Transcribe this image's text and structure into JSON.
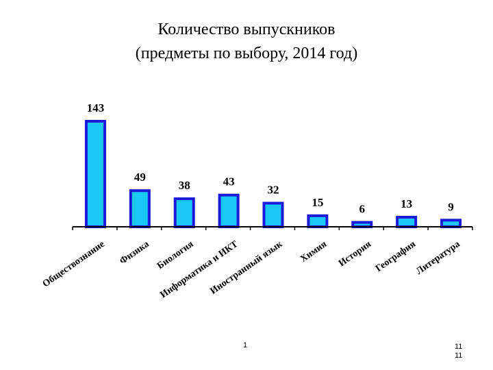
{
  "title": {
    "line1": "Количество выпускников",
    "line2": "(предметы по выбору, 2014 год)"
  },
  "footer": {
    "slide_number": "1",
    "page_number_top": "11",
    "page_number_bottom": "11"
  },
  "colors": {
    "bar_fill": "#19C8F5",
    "bar_stroke": "#1A1AD8",
    "axis": "#000000",
    "text": "#000000"
  },
  "chart_data": {
    "type": "bar",
    "title": "Количество выпускников (предметы по выбору, 2014 год)",
    "categories": [
      "Обществознание",
      "Физика",
      "Биология",
      "Информатика и ИКТ",
      "Иностранный язык",
      "Химия",
      "История",
      "География",
      "Литература"
    ],
    "values": [
      143,
      49,
      38,
      43,
      32,
      15,
      6,
      13,
      9
    ],
    "data_labels": [
      "143",
      "49",
      "38",
      "43",
      "32",
      "15",
      "6",
      "13",
      "9"
    ],
    "ylim": [
      0,
      160
    ],
    "grid": false,
    "legend": "none"
  }
}
